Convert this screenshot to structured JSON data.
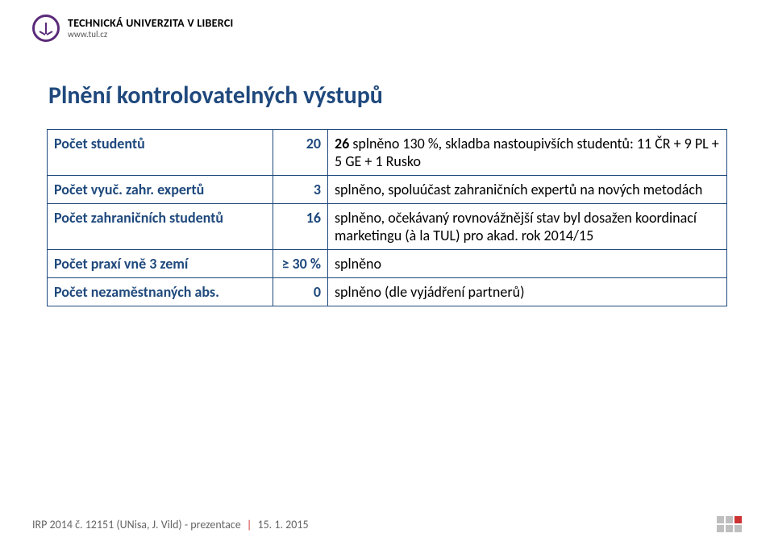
{
  "colors": {
    "brand_blue": "#1f497d",
    "brand_purple": "#5b2a7a",
    "accent_red": "#c33",
    "text_black": "#000000",
    "text_grey": "#646464",
    "square_grey": "#bfbfbf",
    "background": "#ffffff"
  },
  "header": {
    "university_name": "TECHNICKÁ UNIVERZITA V LIBERCI",
    "url": "www.tul.cz"
  },
  "title": "Plnění kontrolovatelných výstupů",
  "table": {
    "border_color": "#1f497d",
    "label_color": "#1f497d",
    "desc_color": "#000000",
    "fontsize": 18,
    "rows": [
      {
        "label": "Počet studentů",
        "num": "20",
        "desc_prefix_bold": "26",
        "desc_rest": "  splněno 130 %, skladba nastoupivších studentů: 11 ČR + 9 PL + 5 GE + 1 Rusko"
      },
      {
        "label": "Počet vyuč. zahr. expertů",
        "num": "3",
        "desc_prefix_bold": "",
        "desc_rest": "splněno, spoluúčast zahraničních expertů na nových metodách"
      },
      {
        "label": "Počet zahraničních studentů",
        "num": "16",
        "desc_prefix_bold": "",
        "desc_rest": "splněno, očekávaný rovnovážnější stav byl dosažen koordinací marketingu (à la TUL) pro akad. rok 2014/15"
      },
      {
        "label": "Počet praxí vně 3 zemí",
        "num": "≥ 30 %",
        "desc_prefix_bold": "",
        "desc_rest": "splněno"
      },
      {
        "label": "Počet nezaměstnaných abs.",
        "num": "0",
        "desc_prefix_bold": "",
        "desc_rest": "splněno (dle vyjádření partnerů)"
      }
    ]
  },
  "footer": {
    "left": "IRP 2014 č. 12151 (UNisa, J. Vild) - prezentace",
    "right": "15. 1. 2015"
  }
}
